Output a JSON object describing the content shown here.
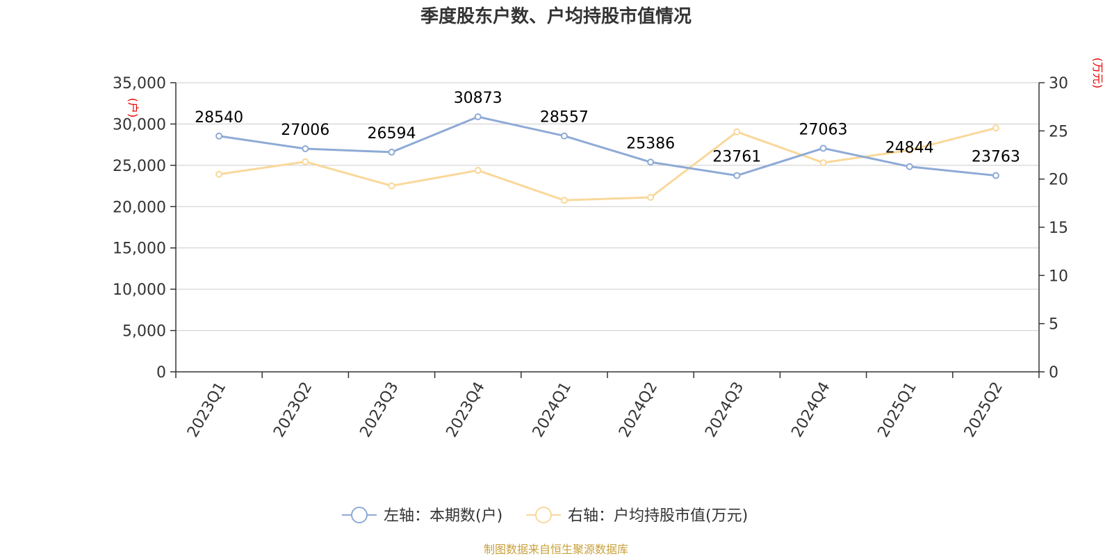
{
  "chart_data": {
    "type": "line",
    "title": "季度股东户数、户均持股市值情况",
    "categories": [
      "2023Q1",
      "2023Q2",
      "2023Q3",
      "2023Q4",
      "2024Q1",
      "2024Q2",
      "2024Q3",
      "2024Q4",
      "2025Q1",
      "2025Q2"
    ],
    "left_axis": {
      "unit": "(户)",
      "ylim": [
        0,
        35000
      ],
      "ticks": [
        "0",
        "5,000",
        "10,000",
        "15,000",
        "20,000",
        "25,000",
        "30,000",
        "35,000"
      ],
      "tick_values": [
        0,
        5000,
        10000,
        15000,
        20000,
        25000,
        30000,
        35000
      ]
    },
    "right_axis": {
      "unit": "(万元)",
      "ylim": [
        0,
        30
      ],
      "ticks": [
        "0",
        "5",
        "10",
        "15",
        "20",
        "25",
        "30"
      ],
      "tick_values": [
        0,
        5,
        10,
        15,
        20,
        25,
        30
      ]
    },
    "series": [
      {
        "name": "左轴：本期数(户)",
        "axis": "left",
        "color": "#8eaad6",
        "values": [
          28540,
          27006,
          26594,
          30873,
          28557,
          25386,
          23761,
          27063,
          24844,
          23763
        ],
        "labels": [
          "28540",
          "27006",
          "26594",
          "30873",
          "28557",
          "25386",
          "23761",
          "27063",
          "24844",
          "23763"
        ]
      },
      {
        "name": "右轴：户均持股市值(万元)",
        "axis": "right",
        "color": "#f9d89a",
        "values": [
          20.5,
          21.8,
          19.3,
          20.9,
          17.8,
          18.1,
          24.9,
          21.7,
          23.0,
          25.3
        ]
      }
    ],
    "grid": true,
    "legend_position": "bottom",
    "source": "制图数据来自恒生聚源数据库"
  }
}
